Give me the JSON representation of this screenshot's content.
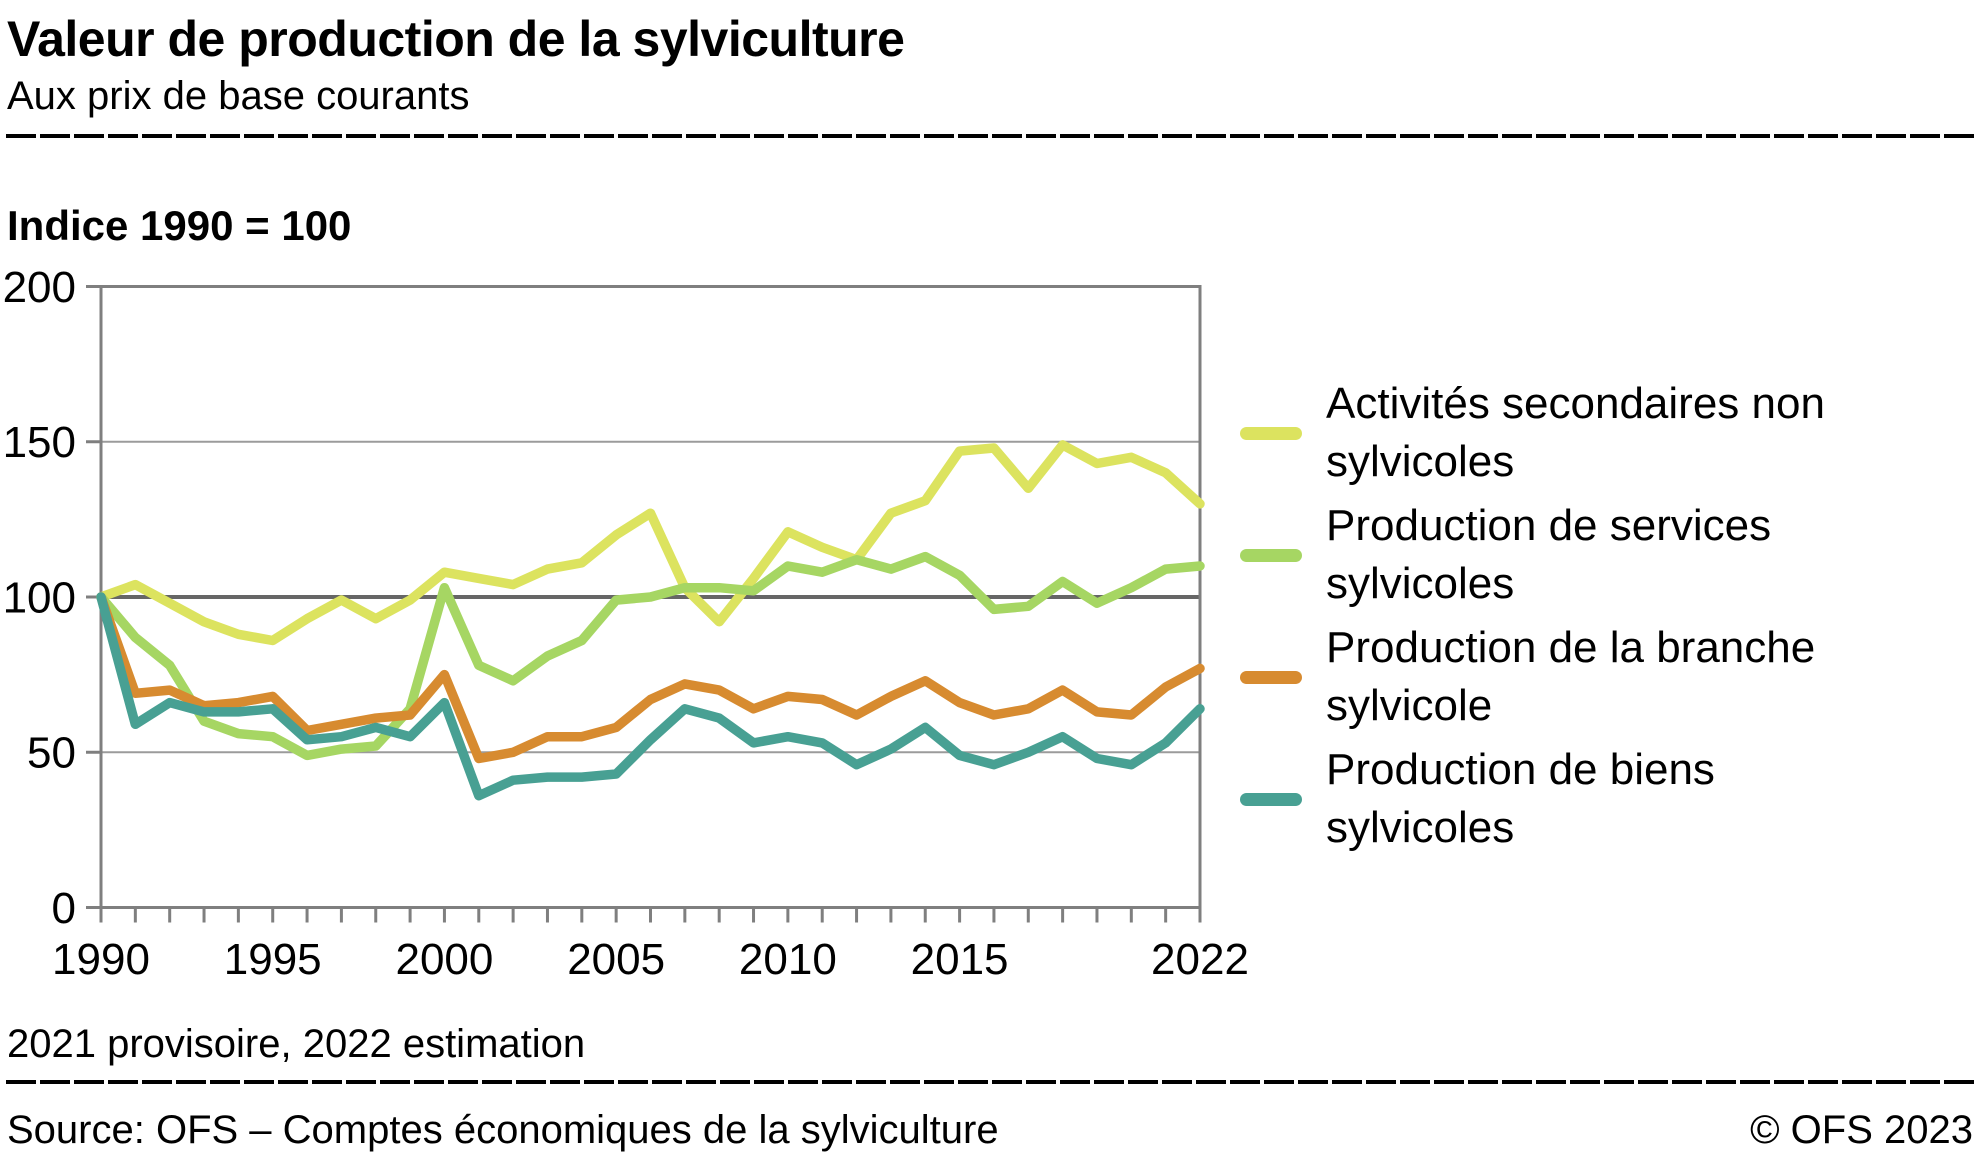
{
  "header": {
    "title": "Valeur de production de la sylviculture",
    "subtitle": "Aux prix de base courants"
  },
  "index_label": "Indice 1990 = 100",
  "footnote": "2021 provisoire, 2022 estimation",
  "footer": {
    "source": "Source: OFS – Comptes économiques de la sylviculture",
    "copyright": "© OFS 2023"
  },
  "chart_data": {
    "type": "line",
    "title": "Valeur de production de la sylviculture",
    "subtitle": "Aux prix de base courants",
    "unit_note": "Indice 1990 = 100",
    "x_start_year": 1990,
    "x_end_year": 2022,
    "ylim": [
      0,
      200
    ],
    "y_ticks": [
      0,
      50,
      100,
      150,
      200
    ],
    "x_tick_labels": [
      1990,
      1995,
      2000,
      2005,
      2010,
      2015,
      2022
    ],
    "grid": "horizontal",
    "baseline_value": 100,
    "legend_position": "right",
    "series": [
      {
        "name": "Activités secondaires non sylvicoles",
        "color": "#dce35f",
        "values": [
          100,
          104,
          98,
          92,
          88,
          86,
          93,
          99,
          93,
          99,
          108,
          106,
          104,
          109,
          111,
          120,
          127,
          103,
          92,
          106,
          121,
          116,
          112,
          127,
          131,
          147,
          148,
          135,
          149,
          143,
          145,
          140,
          130
        ]
      },
      {
        "name": "Production de services sylvicoles",
        "color": "#a6d663",
        "values": [
          100,
          87,
          78,
          60,
          56,
          55,
          49,
          51,
          52,
          64,
          103,
          78,
          73,
          81,
          86,
          99,
          100,
          103,
          103,
          102,
          110,
          108,
          112,
          109,
          113,
          107,
          96,
          97,
          105,
          98,
          103,
          109,
          110
        ]
      },
      {
        "name": "Production de la branche sylvicole",
        "color": "#d78b30",
        "values": [
          100,
          69,
          70,
          65,
          66,
          68,
          57,
          59,
          61,
          62,
          75,
          48,
          50,
          55,
          55,
          58,
          67,
          72,
          70,
          64,
          68,
          67,
          62,
          68,
          73,
          66,
          62,
          64,
          70,
          63,
          62,
          71,
          77
        ]
      },
      {
        "name": "Production de biens sylvicoles",
        "color": "#48a093",
        "values": [
          100,
          59,
          66,
          63,
          63,
          64,
          54,
          55,
          58,
          55,
          66,
          36,
          41,
          42,
          42,
          43,
          54,
          64,
          61,
          53,
          55,
          53,
          46,
          51,
          58,
          49,
          46,
          50,
          55,
          48,
          46,
          53,
          64
        ]
      }
    ]
  },
  "style": {
    "grid_color": "#9b9b9b",
    "baseline_color": "#666666",
    "frame_color": "#7f7f7f",
    "text_color": "#000000"
  }
}
